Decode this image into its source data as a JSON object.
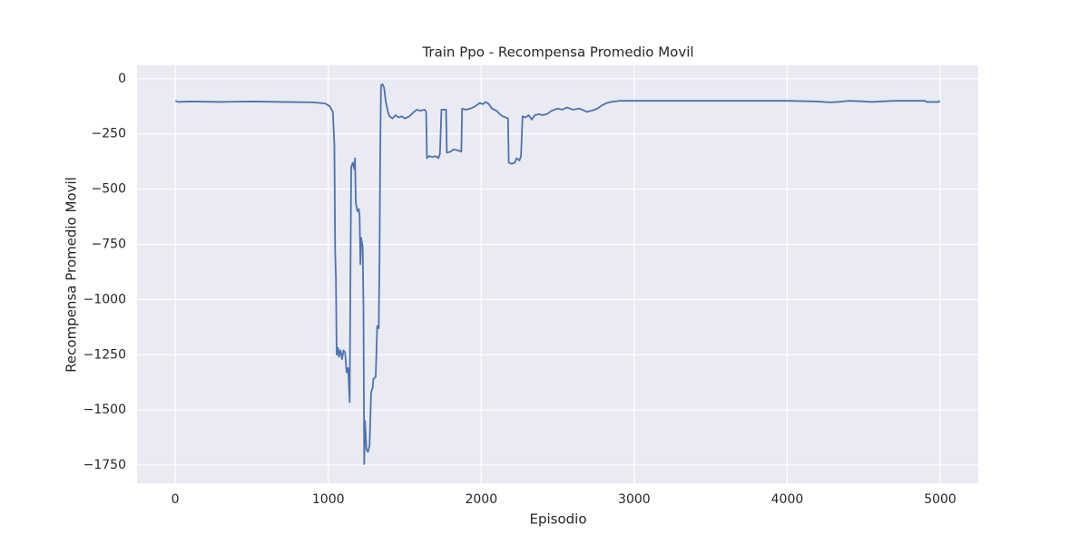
{
  "chart_data": {
    "type": "line",
    "title": "Train Ppo - Recompensa Promedio Movil",
    "xlabel": "Episodio",
    "ylabel": "Recompensa Promedio Movil",
    "color": "#4c72b0",
    "grid": true,
    "xlim": [
      -250,
      5249
    ],
    "ylim": [
      -1832,
      61
    ],
    "xticks": [
      0,
      1000,
      2000,
      3000,
      4000,
      5000
    ],
    "yticks": [
      {
        "value": -1750,
        "label": "−1750"
      },
      {
        "value": -1500,
        "label": "−1500"
      },
      {
        "value": -1250,
        "label": "−1250"
      },
      {
        "value": -1000,
        "label": "−1000"
      },
      {
        "value": -750,
        "label": "−750"
      },
      {
        "value": -500,
        "label": "−500"
      },
      {
        "value": -250,
        "label": "−250"
      },
      0
    ],
    "x": [
      0,
      20,
      100,
      300,
      500,
      700,
      900,
      980,
      1010,
      1030,
      1040,
      1045,
      1050,
      1055,
      1065,
      1070,
      1080,
      1090,
      1100,
      1110,
      1120,
      1130,
      1140,
      1145,
      1150,
      1160,
      1170,
      1175,
      1180,
      1190,
      1200,
      1205,
      1210,
      1215,
      1225,
      1230,
      1235,
      1240,
      1250,
      1260,
      1270,
      1280,
      1290,
      1295,
      1310,
      1320,
      1330,
      1335,
      1340,
      1345,
      1355,
      1365,
      1375,
      1390,
      1400,
      1420,
      1440,
      1460,
      1480,
      1500,
      1530,
      1560,
      1580,
      1600,
      1630,
      1640,
      1645,
      1660,
      1680,
      1700,
      1720,
      1730,
      1740,
      1770,
      1775,
      1800,
      1820,
      1850,
      1870,
      1875,
      1900,
      1930,
      1960,
      1990,
      2010,
      2030,
      2050,
      2070,
      2100,
      2120,
      2140,
      2160,
      2175,
      2180,
      2200,
      2220,
      2230,
      2250,
      2260,
      2270,
      2290,
      2310,
      2330,
      2350,
      2380,
      2400,
      2430,
      2460,
      2500,
      2530,
      2560,
      2600,
      2640,
      2660,
      2690,
      2720,
      2760,
      2790,
      2820,
      2850,
      2900,
      3000,
      3500,
      4000,
      4200,
      4280,
      4330,
      4400,
      4480,
      4550,
      4700,
      4900,
      4910,
      4990,
      4999
    ],
    "values": [
      -100,
      -105,
      -103,
      -105,
      -103,
      -105,
      -107,
      -112,
      -125,
      -150,
      -300,
      -780,
      -900,
      -1250,
      -1220,
      -1260,
      -1230,
      -1270,
      -1230,
      -1240,
      -1330,
      -1310,
      -1465,
      -900,
      -400,
      -380,
      -410,
      -360,
      -560,
      -600,
      -590,
      -620,
      -840,
      -720,
      -760,
      -1030,
      -1745,
      -1550,
      -1680,
      -1690,
      -1660,
      -1420,
      -1400,
      -1360,
      -1350,
      -1120,
      -1130,
      -810,
      -300,
      -30,
      -25,
      -40,
      -100,
      -150,
      -170,
      -180,
      -165,
      -175,
      -170,
      -180,
      -170,
      -150,
      -140,
      -145,
      -140,
      -150,
      -360,
      -350,
      -355,
      -350,
      -360,
      -340,
      -140,
      -140,
      -335,
      -330,
      -320,
      -325,
      -330,
      -135,
      -140,
      -135,
      -125,
      -110,
      -115,
      -105,
      -115,
      -135,
      -145,
      -160,
      -170,
      -175,
      -180,
      -380,
      -385,
      -380,
      -360,
      -370,
      -350,
      -170,
      -175,
      -165,
      -185,
      -165,
      -160,
      -165,
      -160,
      -145,
      -135,
      -140,
      -130,
      -140,
      -135,
      -140,
      -150,
      -145,
      -135,
      -120,
      -110,
      -105,
      -100,
      -100,
      -100,
      -100,
      -103,
      -107,
      -105,
      -100,
      -102,
      -105,
      -100,
      -100,
      -105,
      -105,
      -100
    ]
  }
}
